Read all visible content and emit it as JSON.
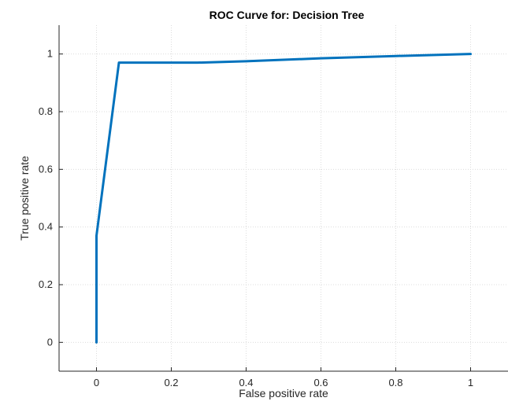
{
  "chart_data": {
    "type": "line",
    "title": "ROC Curve for: Decision Tree",
    "xlabel": "False positive rate",
    "ylabel": "True positive rate",
    "xlim": [
      -0.1,
      1.1
    ],
    "ylim": [
      -0.1,
      1.1
    ],
    "xticks": [
      0,
      0.2,
      0.4,
      0.6,
      0.8,
      1
    ],
    "yticks": [
      0,
      0.2,
      0.4,
      0.6,
      0.8,
      1
    ],
    "xtick_labels": [
      "0",
      "0.2",
      "0.4",
      "0.6",
      "0.8",
      "1"
    ],
    "ytick_labels": [
      "0",
      "0.2",
      "0.4",
      "0.6",
      "0.8",
      "1"
    ],
    "grid": true,
    "series": [
      {
        "color": "#0072BD",
        "x": [
          0,
          0,
          0.06,
          0.27,
          0.4,
          0.6,
          0.8,
          1
        ],
        "y": [
          0,
          0.37,
          0.97,
          0.97,
          0.975,
          0.985,
          0.993,
          1
        ]
      }
    ]
  }
}
